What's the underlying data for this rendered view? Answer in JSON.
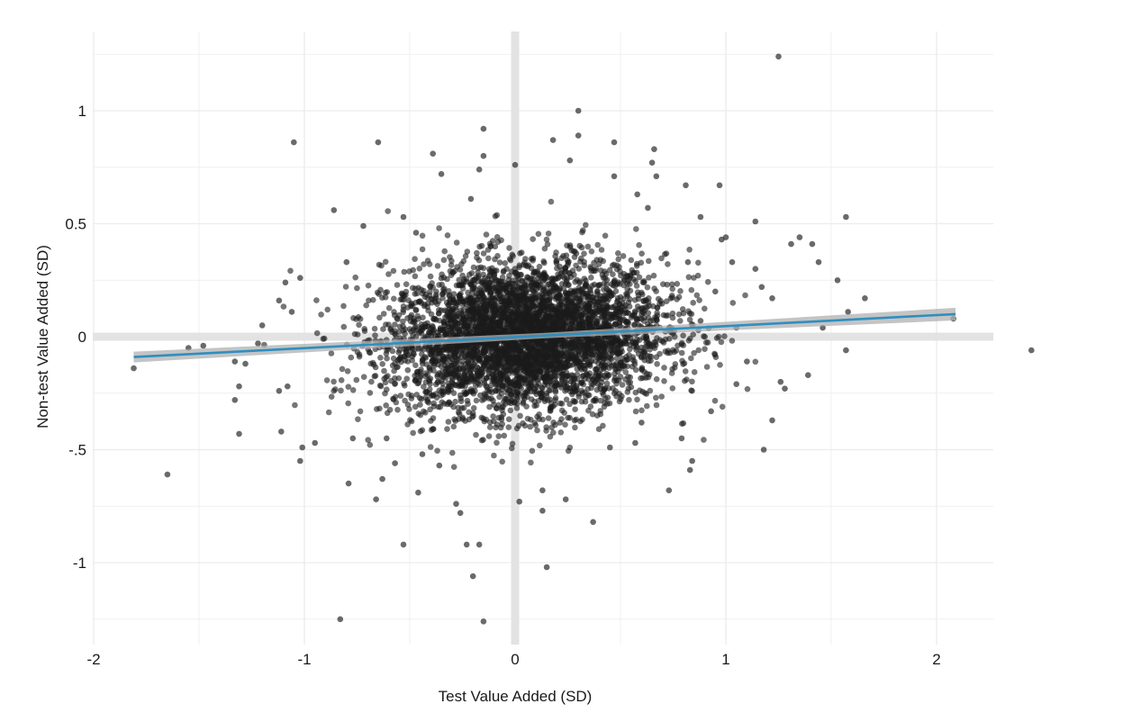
{
  "chart_data": {
    "type": "scatter",
    "title": "",
    "xlabel": "Test Value Added (SD)",
    "ylabel": "Non-test Value Added (SD)",
    "xlim": [
      -2.0,
      2.3
    ],
    "ylim": [
      -1.38,
      1.35
    ],
    "x_ticks": [
      -2,
      -1,
      0,
      1,
      2
    ],
    "x_tick_labels": [
      "-2",
      "-1",
      "0",
      "1",
      "2"
    ],
    "y_ticks": [
      -1,
      -0.5,
      0,
      0.5,
      1
    ],
    "y_tick_labels": [
      "-1",
      "-.5",
      "0",
      "0.5",
      "1"
    ],
    "grid": true,
    "reference_lines": {
      "x": 0,
      "y": 0
    },
    "colors": {
      "points": "#1a1a1a",
      "fit_line": "#2f8ec0",
      "ci_band": "#b0b0b0",
      "grid": "#ececec",
      "ref": "#e3e3e3"
    },
    "fit_line": {
      "x": [
        -1.81,
        2.09
      ],
      "y": [
        -0.09,
        0.1
      ]
    },
    "cloud": {
      "n_points": 4500,
      "center": [
        0.05,
        0.0
      ],
      "sd": [
        0.33,
        0.165
      ],
      "range_x": [
        -1.2,
        1.15
      ],
      "range_y": [
        -0.6,
        0.62
      ]
    },
    "outlier_points": [
      {
        "x": 1.25,
        "y": 1.24
      },
      {
        "x": 0.3,
        "y": 1.0
      },
      {
        "x": -0.15,
        "y": 0.92
      },
      {
        "x": 0.3,
        "y": 0.89
      },
      {
        "x": -1.05,
        "y": 0.86
      },
      {
        "x": -0.65,
        "y": 0.86
      },
      {
        "x": 0.47,
        "y": 0.86
      },
      {
        "x": 0.18,
        "y": 0.87
      },
      {
        "x": 0.66,
        "y": 0.83
      },
      {
        "x": -0.15,
        "y": 0.8
      },
      {
        "x": -0.39,
        "y": 0.81
      },
      {
        "x": 0.26,
        "y": 0.78
      },
      {
        "x": 0.65,
        "y": 0.77
      },
      {
        "x": 0.0,
        "y": 0.76
      },
      {
        "x": -0.17,
        "y": 0.74
      },
      {
        "x": -0.35,
        "y": 0.72
      },
      {
        "x": 0.47,
        "y": 0.71
      },
      {
        "x": 0.67,
        "y": 0.71
      },
      {
        "x": 0.81,
        "y": 0.67
      },
      {
        "x": 0.97,
        "y": 0.67
      },
      {
        "x": 0.58,
        "y": 0.63
      },
      {
        "x": -0.86,
        "y": 0.56
      },
      {
        "x": -0.53,
        "y": 0.53
      },
      {
        "x": 0.88,
        "y": 0.53
      },
      {
        "x": 1.14,
        "y": 0.51
      },
      {
        "x": 1.57,
        "y": 0.53
      },
      {
        "x": -0.72,
        "y": 0.49
      },
      {
        "x": 1.31,
        "y": 0.41
      },
      {
        "x": 1.35,
        "y": 0.44
      },
      {
        "x": 1.41,
        "y": 0.41
      },
      {
        "x": 1.44,
        "y": 0.33
      },
      {
        "x": 1.53,
        "y": 0.25
      },
      {
        "x": 1.58,
        "y": 0.11
      },
      {
        "x": 1.66,
        "y": 0.17
      },
      {
        "x": 2.08,
        "y": 0.08
      },
      {
        "x": 1.22,
        "y": 0.17
      },
      {
        "x": 1.17,
        "y": 0.22
      },
      {
        "x": 0.82,
        "y": 0.33
      },
      {
        "x": 1.0,
        "y": 0.44
      },
      {
        "x": -0.8,
        "y": 0.33
      },
      {
        "x": -1.02,
        "y": 0.26
      },
      {
        "x": -1.09,
        "y": 0.24
      },
      {
        "x": -1.12,
        "y": 0.16
      },
      {
        "x": -1.2,
        "y": 0.05
      },
      {
        "x": -1.22,
        "y": -0.03
      },
      {
        "x": -1.06,
        "y": 0.11
      },
      {
        "x": -1.81,
        "y": -0.14
      },
      {
        "x": -1.55,
        "y": -0.05
      },
      {
        "x": -1.48,
        "y": -0.04
      },
      {
        "x": -1.33,
        "y": -0.11
      },
      {
        "x": -1.28,
        "y": -0.12
      },
      {
        "x": -1.31,
        "y": -0.22
      },
      {
        "x": -1.33,
        "y": -0.28
      },
      {
        "x": -1.12,
        "y": -0.24
      },
      {
        "x": -1.08,
        "y": -0.22
      },
      {
        "x": -1.31,
        "y": -0.43
      },
      {
        "x": -1.11,
        "y": -0.42
      },
      {
        "x": -1.01,
        "y": -0.49
      },
      {
        "x": -1.02,
        "y": -0.55
      },
      {
        "x": -1.65,
        "y": -0.61
      },
      {
        "x": -0.95,
        "y": -0.47
      },
      {
        "x": -0.79,
        "y": -0.65
      },
      {
        "x": -0.66,
        "y": -0.72
      },
      {
        "x": -0.63,
        "y": -0.63
      },
      {
        "x": -0.46,
        "y": -0.69
      },
      {
        "x": -0.53,
        "y": -0.92
      },
      {
        "x": -0.83,
        "y": -1.25
      },
      {
        "x": -0.28,
        "y": -0.74
      },
      {
        "x": -0.26,
        "y": -0.78
      },
      {
        "x": -0.23,
        "y": -0.92
      },
      {
        "x": -0.17,
        "y": -0.92
      },
      {
        "x": -0.2,
        "y": -1.06
      },
      {
        "x": -0.15,
        "y": -1.26
      },
      {
        "x": 0.02,
        "y": -0.73
      },
      {
        "x": 0.13,
        "y": -0.68
      },
      {
        "x": 0.13,
        "y": -0.77
      },
      {
        "x": 0.15,
        "y": -1.02
      },
      {
        "x": 0.24,
        "y": -0.72
      },
      {
        "x": 0.37,
        "y": -0.82
      },
      {
        "x": 0.57,
        "y": -0.47
      },
      {
        "x": 0.73,
        "y": -0.68
      },
      {
        "x": 0.79,
        "y": -0.45
      },
      {
        "x": 0.84,
        "y": -0.55
      },
      {
        "x": 0.83,
        "y": -0.59
      },
      {
        "x": 0.93,
        "y": -0.33
      },
      {
        "x": 1.18,
        "y": -0.5
      },
      {
        "x": 1.22,
        "y": -0.37
      },
      {
        "x": 1.26,
        "y": -0.2
      },
      {
        "x": 1.28,
        "y": -0.23
      },
      {
        "x": 1.39,
        "y": -0.17
      },
      {
        "x": 1.57,
        "y": -0.06
      },
      {
        "x": 1.46,
        "y": 0.04
      },
      {
        "x": 2.45,
        "y": -0.06
      },
      {
        "x": 1.05,
        "y": -0.21
      },
      {
        "x": 1.1,
        "y": -0.11
      },
      {
        "x": 0.98,
        "y": 0.43
      },
      {
        "x": 1.03,
        "y": 0.33
      },
      {
        "x": 0.95,
        "y": 0.2
      },
      {
        "x": 1.14,
        "y": 0.3
      },
      {
        "x": 0.88,
        "y": 0.07
      },
      {
        "x": 1.05,
        "y": 0.04
      },
      {
        "x": -0.61,
        "y": -0.45
      },
      {
        "x": -0.77,
        "y": -0.45
      },
      {
        "x": -0.57,
        "y": -0.56
      },
      {
        "x": -0.44,
        "y": -0.52
      },
      {
        "x": -0.36,
        "y": -0.57
      },
      {
        "x": 0.45,
        "y": -0.49
      },
      {
        "x": 0.6,
        "y": -0.38
      },
      {
        "x": 0.63,
        "y": 0.57
      },
      {
        "x": -0.21,
        "y": 0.61
      },
      {
        "x": -0.47,
        "y": 0.46
      }
    ]
  }
}
